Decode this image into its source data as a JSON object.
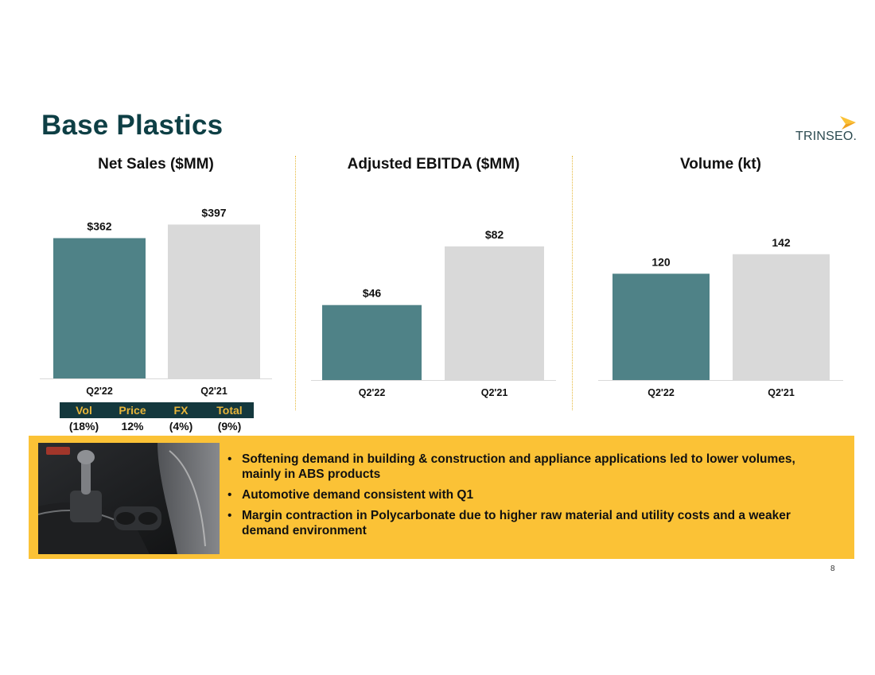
{
  "header": {
    "title": "Base Plastics",
    "logo_text": "TRINSEO."
  },
  "colors": {
    "title": "#0e3f45",
    "current_bar": "#4f8287",
    "prior_bar": "#d9d9d9",
    "banner": "#fbc236",
    "bridge_header_bg": "#14383d",
    "bridge_header_text": "#e7b53a",
    "logo_accent": "#fbc236"
  },
  "chart_data": [
    {
      "type": "bar",
      "title": "Net Sales ($MM)",
      "categories": [
        "Q2'22",
        "Q2'21"
      ],
      "values": [
        362,
        397
      ],
      "data_labels": [
        "$362",
        "$397"
      ],
      "ylim": [
        0,
        400
      ],
      "grid": false,
      "bar_colors": [
        "#4f8287",
        "#d9d9d9"
      ]
    },
    {
      "type": "bar",
      "title": "Adjusted EBITDA ($MM)",
      "categories": [
        "Q2'22",
        "Q2'21"
      ],
      "values": [
        46,
        82
      ],
      "data_labels": [
        "$46",
        "$82"
      ],
      "ylim": [
        0,
        100
      ],
      "grid": false,
      "bar_colors": [
        "#4f8287",
        "#d9d9d9"
      ]
    },
    {
      "type": "bar",
      "title": "Volume (kt)",
      "categories": [
        "Q2'22",
        "Q2'21"
      ],
      "values": [
        120,
        142
      ],
      "data_labels": [
        "120",
        "142"
      ],
      "ylim": [
        0,
        175
      ],
      "grid": false,
      "bar_colors": [
        "#4f8287",
        "#d9d9d9"
      ]
    }
  ],
  "bridge": {
    "headers": [
      "Vol",
      "Price",
      "FX",
      "Total"
    ],
    "values": [
      "(18%)",
      "12%",
      "(4%)",
      "(9%)"
    ]
  },
  "banner": {
    "photo_icon": "car-interior-photo",
    "bullets": [
      "Softening demand in building & construction and appliance applications led to lower volumes, mainly in ABS products",
      "Automotive demand consistent with Q1",
      "Margin contraction in Polycarbonate due to higher raw material and utility costs and a weaker demand environment"
    ]
  },
  "footer": {
    "page_number": "8"
  }
}
